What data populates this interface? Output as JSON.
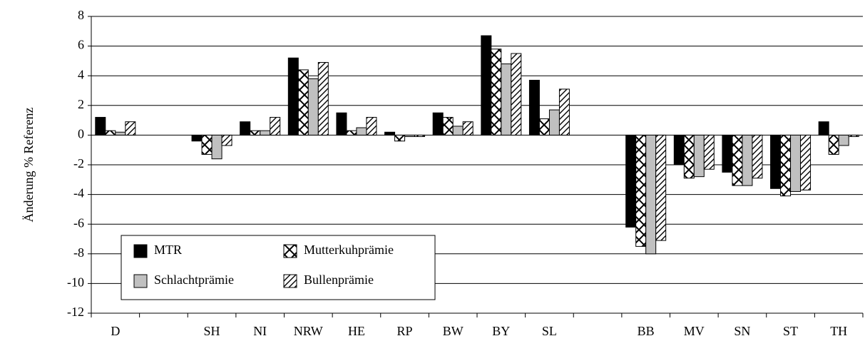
{
  "chart_data": {
    "type": "bar",
    "y_label": "Änderung % Referenz",
    "categories": [
      "D",
      null,
      "SH",
      "NI",
      "NRW",
      "HE",
      "RP",
      "BW",
      "BY",
      "SL",
      null,
      "BB",
      "MV",
      "SN",
      "ST",
      "TH"
    ],
    "series": [
      {
        "name": "MTR",
        "color": "#000000",
        "pattern": "solid",
        "values": [
          1.2,
          null,
          -0.4,
          0.9,
          5.2,
          1.5,
          0.2,
          1.5,
          6.7,
          3.7,
          null,
          -6.2,
          -2.0,
          -2.5,
          -3.6,
          0.9
        ]
      },
      {
        "name": "Mutterkuhprämie",
        "color": "#000000",
        "pattern": "crosshatch",
        "values": [
          0.3,
          null,
          -1.3,
          0.3,
          4.4,
          0.3,
          -0.4,
          1.2,
          5.8,
          1.1,
          null,
          -7.5,
          -2.9,
          -3.4,
          -4.1,
          -1.3
        ]
      },
      {
        "name": "Schlachtprämie",
        "color": "#c0c0c0",
        "pattern": "solid",
        "values": [
          0.2,
          null,
          -1.6,
          0.3,
          3.8,
          0.5,
          -0.1,
          0.6,
          4.8,
          1.7,
          null,
          -8.0,
          -2.8,
          -3.4,
          -3.8,
          -0.7
        ]
      },
      {
        "name": "Bullenprämie",
        "color": "#000000",
        "pattern": "diagonal",
        "values": [
          0.9,
          null,
          -0.7,
          1.2,
          4.9,
          1.2,
          -0.1,
          0.9,
          5.5,
          3.1,
          null,
          -7.1,
          -2.3,
          -2.9,
          -3.7,
          -0.1
        ]
      }
    ],
    "ylim": [
      -12,
      8
    ],
    "yticks": [
      -12,
      -10,
      -8,
      -6,
      -4,
      -2,
      0,
      2,
      4,
      6,
      8
    ],
    "grid": true,
    "legend_position": "lower left"
  }
}
